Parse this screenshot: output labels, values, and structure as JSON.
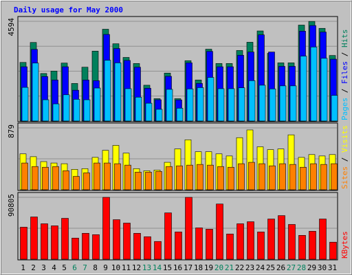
{
  "colors": {
    "background": "#c0c0c0",
    "panel": "#c0c0c0",
    "hits": "#00805c",
    "files": "#0000ff",
    "pages": "#00c0ff",
    "visits": "#ffff00",
    "sites": "#ff8000",
    "kbytes": "#ff0000",
    "title": "#0000ff",
    "weekend_label": "#00805c",
    "weekday_label": "#000080"
  },
  "chart_data": {
    "type": "bar",
    "title": "Daily usage for May 2000",
    "categories": [
      "1",
      "2",
      "3",
      "4",
      "5",
      "6",
      "7",
      "8",
      "9",
      "10",
      "11",
      "12",
      "13",
      "14",
      "15",
      "16",
      "17",
      "18",
      "19",
      "20",
      "21",
      "22",
      "23",
      "24",
      "25",
      "26",
      "27",
      "28",
      "29",
      "30",
      "31"
    ],
    "weekend_days": [
      "6",
      "7",
      "13",
      "14",
      "20",
      "21",
      "27",
      "28"
    ],
    "panels": [
      {
        "id": "hits-files-pages",
        "ymax": 4594,
        "ymax_label": "4594",
        "legend": [
          {
            "text": "Pages",
            "color": "#00c0ff"
          },
          {
            "text": " / ",
            "color": "#000000"
          },
          {
            "text": "Files",
            "color": "#0000ff"
          },
          {
            "text": " / ",
            "color": "#000000"
          },
          {
            "text": "Hits",
            "color": "#00805c"
          }
        ],
        "series": [
          {
            "name": "Hits",
            "color": "#00805c",
            "values": [
              2700,
              3620,
              2190,
              2300,
              2670,
              1730,
              2480,
              3220,
              4230,
              3560,
              2930,
              2650,
              1650,
              1030,
              2210,
              1030,
              2780,
              1890,
              3310,
              2650,
              2650,
              3250,
              3630,
              4150,
              3120,
              2680,
              2680,
              4420,
              4590,
              4270,
              3020
            ]
          },
          {
            "name": "Files",
            "color": "#0000ff",
            "values": [
              2500,
              3300,
              2050,
              1890,
              2500,
              1420,
              1890,
              1860,
              3990,
              3340,
              2790,
              2480,
              1510,
              980,
              2060,
              970,
              2680,
              1730,
              3210,
              2500,
              2500,
              3030,
              3180,
              3970,
              3180,
              2520,
              2520,
              4140,
              4400,
              4100,
              2850
            ]
          },
          {
            "name": "Pages",
            "color": "#00c0ff",
            "values": [
              1550,
              2670,
              980,
              790,
              1210,
              1000,
              980,
              1520,
              2800,
              2680,
              1490,
              1100,
              820,
              540,
              1460,
              590,
              1480,
              1540,
              2010,
              1490,
              1490,
              1530,
              1860,
              1650,
              1480,
              1620,
              1620,
              2990,
              3410,
              2890,
              1180
            ]
          }
        ]
      },
      {
        "id": "visits-sites",
        "ymax": 879,
        "ymax_label": "879",
        "legend": [
          {
            "text": "Sites",
            "color": "#ff8000"
          },
          {
            "text": " / ",
            "color": "#000000"
          },
          {
            "text": "Visits",
            "color": "#ffff00"
          }
        ],
        "series": [
          {
            "name": "Visits",
            "color": "#ffff00",
            "values": [
              510,
              470,
              400,
              380,
              370,
              290,
              300,
              460,
              560,
              630,
              520,
              300,
              270,
              280,
              390,
              580,
              710,
              540,
              540,
              510,
              480,
              740,
              850,
              610,
              570,
              580,
              780,
              460,
              500,
              480,
              500
            ]
          },
          {
            "name": "Sites",
            "color": "#ff8000",
            "values": [
              380,
              330,
              320,
              330,
              270,
              190,
              240,
              380,
              380,
              370,
              350,
              250,
              250,
              260,
              330,
              340,
              350,
              360,
              350,
              330,
              320,
              370,
              390,
              370,
              340,
              370,
              360,
              320,
              370,
              360,
              370
            ]
          }
        ]
      },
      {
        "id": "kbytes",
        "ymax": 90805,
        "ymax_label": "90805",
        "legend": [
          {
            "text": "KBytes",
            "color": "#ff0000"
          }
        ],
        "series": [
          {
            "name": "KBytes",
            "color": "#ff0000",
            "values": [
              47000,
              62000,
              52000,
              49000,
              60000,
              31000,
              38000,
              36000,
              90800,
              58000,
              53000,
              38000,
              33000,
              26000,
              68000,
              40000,
              90800,
              46000,
              44000,
              81000,
              37000,
              52000,
              55000,
              40000,
              59000,
              64000,
              51000,
              35000,
              41000,
              59000,
              25000
            ]
          }
        ]
      }
    ]
  }
}
